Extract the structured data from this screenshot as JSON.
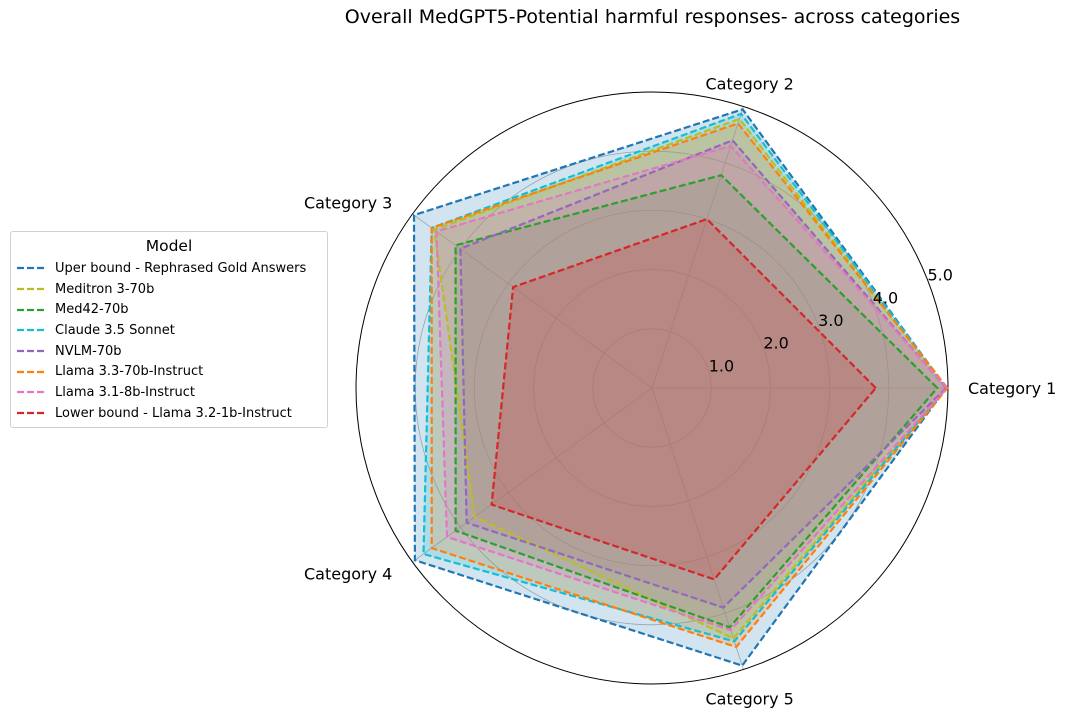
{
  "chart_data": {
    "type": "radar",
    "title": "Overall MedGPT5-Potential harmful responses- across categories",
    "categories": [
      "Category 1",
      "Category 2",
      "Category 3",
      "Category 4",
      "Category 5"
    ],
    "rmax": 5.0,
    "ticks": [
      "1.0",
      "2.0",
      "3.0",
      "4.0",
      "5.0"
    ],
    "tick_values": [
      1,
      2,
      3,
      4,
      5
    ],
    "grid": true,
    "legend": {
      "title": "Model",
      "placement": "center-left"
    },
    "series": [
      {
        "name": "Uper bound - Rephrased Gold Answers",
        "color": "#1f77b4",
        "filled": true,
        "values": [
          4.97,
          4.95,
          4.97,
          4.95,
          4.93
        ]
      },
      {
        "name": "Meditron 3-70b",
        "color": "#bcbd22",
        "filled": true,
        "values": [
          4.97,
          4.78,
          4.55,
          3.7,
          4.45
        ]
      },
      {
        "name": "Med42-70b",
        "color": "#2ca02c",
        "filled": true,
        "values": [
          4.82,
          3.78,
          4.1,
          4.1,
          4.25
        ]
      },
      {
        "name": "Claude 3.5 Sonnet",
        "color": "#17becf",
        "filled": true,
        "values": [
          4.98,
          4.87,
          4.6,
          4.77,
          4.5
        ]
      },
      {
        "name": "NVLM-70b",
        "color": "#9467bd",
        "filled": true,
        "values": [
          4.97,
          4.4,
          4.0,
          3.87,
          3.9
        ]
      },
      {
        "name": "Llama 3.3-70b-Instruct",
        "color": "#ff7f0e",
        "filled": true,
        "values": [
          4.99,
          4.7,
          4.6,
          4.6,
          4.6
        ]
      },
      {
        "name": "Llama 3.1-8b-Instruct",
        "color": "#e377c2",
        "filled": true,
        "values": [
          4.98,
          4.3,
          4.5,
          4.28,
          4.3
        ]
      },
      {
        "name": "Lower bound - Llama 3.2-1b-Instruct",
        "color": "#d62728",
        "filled": true,
        "values": [
          3.78,
          3.0,
          2.9,
          3.35,
          3.4
        ]
      }
    ]
  }
}
